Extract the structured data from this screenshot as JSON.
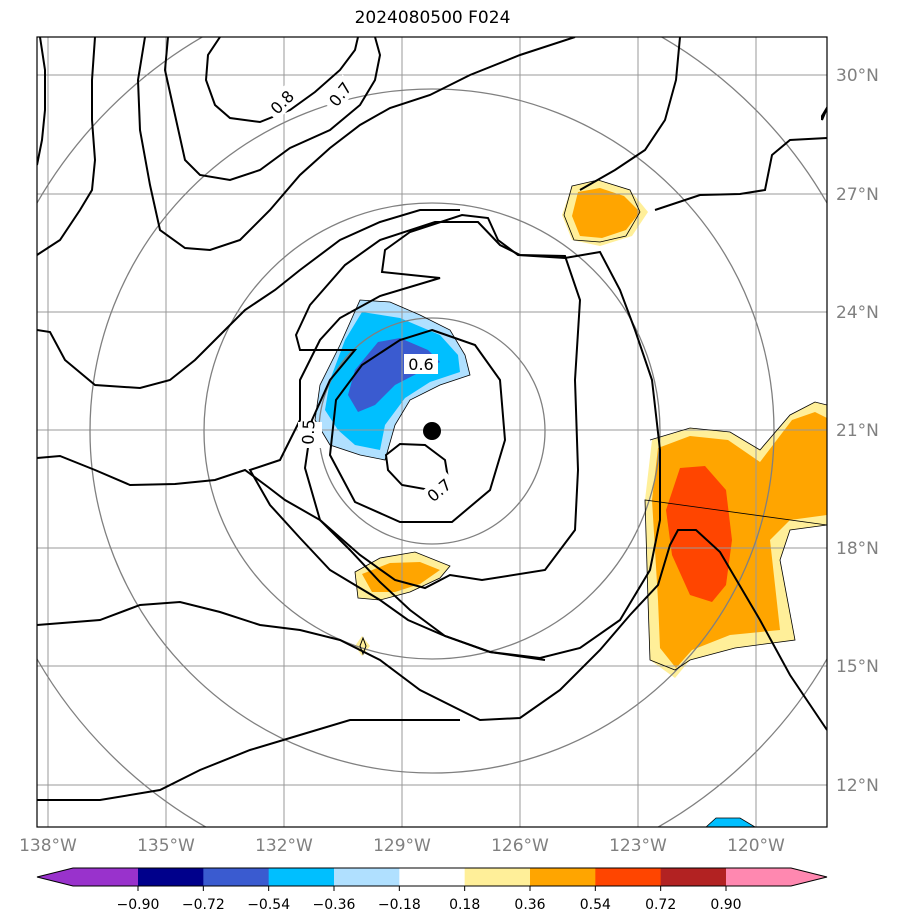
{
  "title": "2024080500 F024",
  "map": {
    "lon_ticks": [
      {
        "lon": -138,
        "label": "138°W"
      },
      {
        "lon": -135,
        "label": "135°W"
      },
      {
        "lon": -132,
        "label": "132°W"
      },
      {
        "lon": -129,
        "label": "129°W"
      },
      {
        "lon": -126,
        "label": "126°W"
      },
      {
        "lon": -123,
        "label": "123°W"
      },
      {
        "lon": -120,
        "label": "120°W"
      }
    ],
    "lat_ticks": [
      {
        "lat": 30,
        "label": "30°N"
      },
      {
        "lat": 27,
        "label": "27°N"
      },
      {
        "lat": 24,
        "label": "24°N"
      },
      {
        "lat": 21,
        "label": "21°N"
      },
      {
        "lat": 18,
        "label": "18°N"
      },
      {
        "lat": 15,
        "label": "15°N"
      },
      {
        "lat": 12,
        "label": "12°N"
      }
    ],
    "extent": {
      "lon_min": -138,
      "lon_max": -118,
      "lat_min": 11,
      "lat_max": 31
    },
    "storm_center": {
      "lon": -128,
      "lat": 21
    },
    "contour_labels": [
      {
        "text": "0.8",
        "lon": -133.5,
        "lat": 29.1
      },
      {
        "text": "0.7",
        "lon": -132.0,
        "lat": 29.5
      },
      {
        "text": "0.6",
        "lon": -128.5,
        "lat": 22.7
      },
      {
        "text": "0.5",
        "lon": -130.3,
        "lat": 21.0
      },
      {
        "text": "0.7",
        "lon": -128.2,
        "lat": 20.0
      }
    ]
  },
  "colorbar": {
    "ticks": [
      "−0.90",
      "−0.72",
      "−0.54",
      "−0.36",
      "−0.18",
      "0.18",
      "0.36",
      "0.54",
      "0.72",
      "0.90"
    ],
    "colors": {
      "under": "#9932cc",
      "bins": [
        "#00008b",
        "#3a5bd0",
        "#00bfff",
        "#b0e0ff",
        "#ffffff",
        "#ffef99",
        "#ffa500",
        "#ff4500",
        "#b22222"
      ],
      "over": "#ff88b0"
    }
  }
}
